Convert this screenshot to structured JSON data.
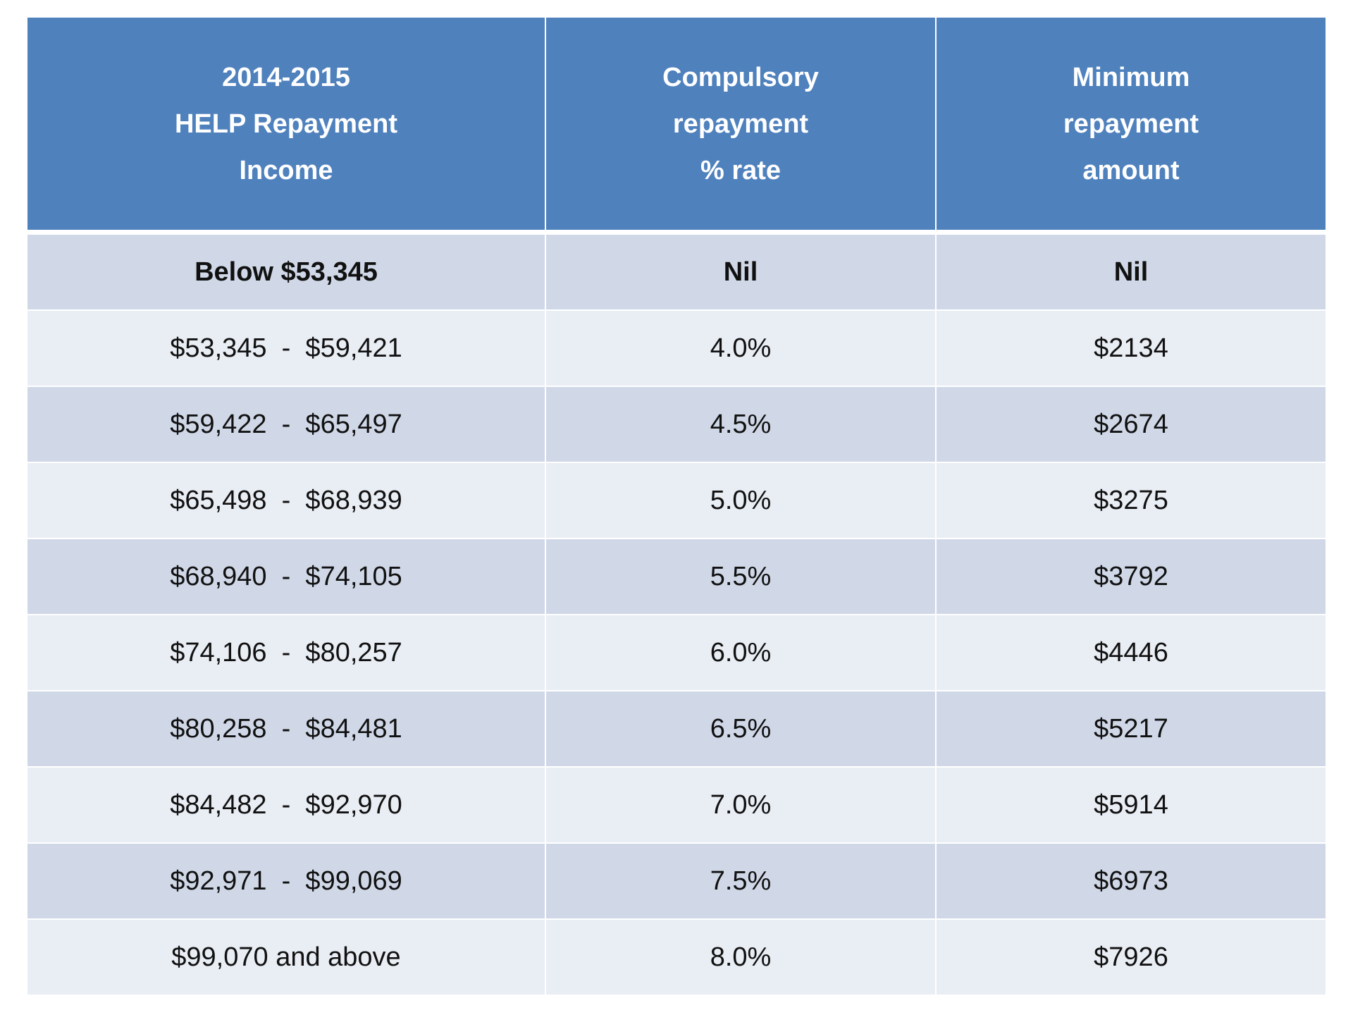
{
  "table": {
    "header": [
      [
        "2014-2015",
        "HELP Repayment",
        "Income"
      ],
      [
        "Compulsory",
        "repayment",
        "% rate"
      ],
      [
        "Minimum",
        "repayment",
        "amount"
      ]
    ],
    "rows": [
      [
        "Below $53,345",
        "Nil",
        "Nil"
      ],
      [
        "$53,345  -  $59,421",
        "4.0%",
        "$2134"
      ],
      [
        "$59,422  -  $65,497",
        "4.5%",
        "$2674"
      ],
      [
        "$65,498  -  $68,939",
        "5.0%",
        "$3275"
      ],
      [
        "$68,940  -  $74,105",
        "5.5%",
        "$3792"
      ],
      [
        "$74,106  -  $80,257",
        "6.0%",
        "$4446"
      ],
      [
        "$80,258  -  $84,481",
        "6.5%",
        "$5217"
      ],
      [
        "$84,482  -  $92,970",
        "7.0%",
        "$5914"
      ],
      [
        "$92,971  -  $99,069",
        "7.5%",
        "$6973"
      ],
      [
        "$99,070 and above",
        "8.0%",
        "$7926"
      ]
    ]
  }
}
